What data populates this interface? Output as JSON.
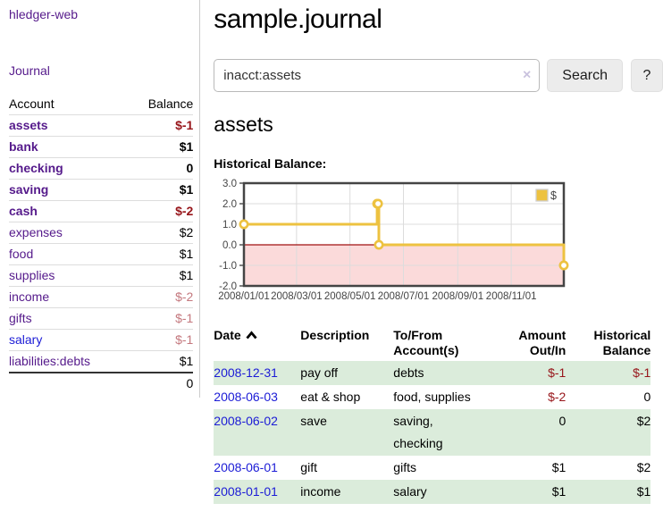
{
  "app": {
    "title": "hledger-web"
  },
  "sidebar": {
    "nav": {
      "journal_label": "Journal"
    },
    "table": {
      "account_header": "Account",
      "balance_header": "Balance",
      "accounts": [
        {
          "name": "assets",
          "balance": "$-1",
          "level": 1,
          "current": true,
          "negative": "strong"
        },
        {
          "name": "bank",
          "balance": "$1",
          "level": 2,
          "current": true
        },
        {
          "name": "checking",
          "balance": "0",
          "level": 3,
          "current": true
        },
        {
          "name": "saving",
          "balance": "$1",
          "level": 3,
          "current": true
        },
        {
          "name": "cash",
          "balance": "$-2",
          "level": 2,
          "current": true,
          "negative": "strong"
        },
        {
          "name": "expenses",
          "balance": "$2",
          "level": 1
        },
        {
          "name": "food",
          "balance": "$1",
          "level": 2
        },
        {
          "name": "supplies",
          "balance": "$1",
          "level": 2
        },
        {
          "name": "income",
          "balance": "$-2",
          "level": 1,
          "negative": "soft"
        },
        {
          "name": "gifts",
          "balance": "$-1",
          "level": 2,
          "negative": "soft"
        },
        {
          "name": "salary",
          "balance": "$-1",
          "level": 2,
          "negative": "soft",
          "unvisited": true
        },
        {
          "name": "liabilities:debts",
          "balance": "$1",
          "level": 1
        }
      ],
      "total": "0"
    }
  },
  "header": {
    "title": "sample.journal"
  },
  "search": {
    "value": "inacct:assets",
    "clear_icon": "×",
    "button_label": "Search",
    "help_label": "?"
  },
  "account_page": {
    "heading": "assets",
    "chart_title": "Historical Balance:"
  },
  "chart_data": {
    "type": "line",
    "title": "Historical Balance:",
    "series": [
      {
        "name": "$",
        "color": "#edc240",
        "step": true,
        "points": [
          {
            "date": "2008-01-01",
            "y": 1
          },
          {
            "date": "2008-06-01",
            "y": 2
          },
          {
            "date": "2008-06-02",
            "y": 2
          },
          {
            "date": "2008-06-03",
            "y": 0
          },
          {
            "date": "2008-12-31",
            "y": -1
          }
        ]
      }
    ],
    "ylim": [
      -2,
      3
    ],
    "yticks": [
      "3.0",
      "2.0",
      "1.0",
      "0.0",
      "-1.0",
      "-2.0"
    ],
    "xrange": [
      "2008-01-01",
      "2008-12-31"
    ],
    "xticks": [
      "2008/01/01",
      "2008/03/01",
      "2008/05/01",
      "2008/07/01",
      "2008/09/01",
      "2008/11/01"
    ],
    "grid": true,
    "legend_position": "top-right",
    "negative_fill": "#fbdada",
    "zero_line_color": "#a01010"
  },
  "register": {
    "columns": [
      {
        "lines": [
          "Date"
        ],
        "sorted": "asc"
      },
      {
        "lines": [
          "Description"
        ]
      },
      {
        "lines": [
          "To/From",
          "Account(s)"
        ]
      },
      {
        "lines": [
          "Amount",
          "Out/In"
        ],
        "align": "right"
      },
      {
        "lines": [
          "Historical",
          "Balance"
        ],
        "align": "right"
      }
    ],
    "rows": [
      {
        "date": "2008-12-31",
        "description": "pay off",
        "accounts": "debts",
        "amount": "$-1",
        "balance": "$-1"
      },
      {
        "date": "2008-06-03",
        "description": "eat & shop",
        "accounts": "food, supplies",
        "amount": "$-2",
        "balance": "0"
      },
      {
        "date": "2008-06-02",
        "description": "save",
        "accounts": "saving,\nchecking",
        "amount": "0",
        "balance": "$2"
      },
      {
        "date": "2008-06-01",
        "description": "gift",
        "accounts": "gifts",
        "amount": "$1",
        "balance": "$2"
      },
      {
        "date": "2008-01-01",
        "description": "income",
        "accounts": "salary",
        "amount": "$1",
        "balance": "$1"
      }
    ]
  },
  "colors": {
    "link_purple": "#551a8b",
    "link_blue": "#1c1cd6",
    "negative_strong": "#97151a",
    "negative_soft": "#c4787e",
    "row_green": "#dbecdb",
    "chart_line": "#edc240",
    "chart_negative_fill": "#fbdada",
    "chart_zero_line": "#a01010"
  }
}
